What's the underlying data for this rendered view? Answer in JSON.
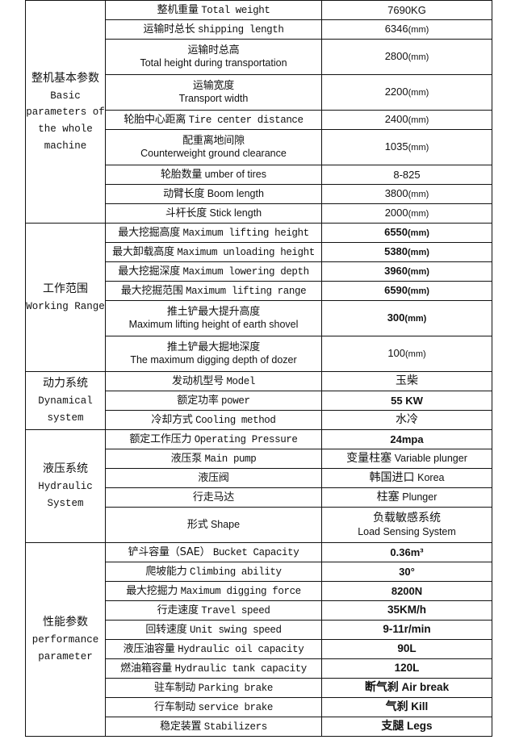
{
  "groups": [
    {
      "cn": "整机基本参数",
      "en": [
        "Basic",
        "parameters of",
        "the whole",
        "machine"
      ],
      "rows": [
        {
          "cn": "整机重量",
          "en": "Total weight",
          "value": "7690KG",
          "two": false,
          "bold": false
        },
        {
          "cn": "运输时总长",
          "en": "shipping length",
          "value": "6346",
          "unit": "(mm)",
          "two": false
        },
        {
          "cn": "运输时总高",
          "en": "Total height during transportation",
          "value": "2800",
          "unit": "(mm)",
          "two": true
        },
        {
          "cn": "运输宽度",
          "en": "Transport width",
          "value": "2200",
          "unit": "(mm)",
          "two": true
        },
        {
          "cn": "轮胎中心距离",
          "en": "Tire center distance",
          "value": "2400",
          "unit": "(mm)",
          "two": false
        },
        {
          "cn": "配重离地间隙",
          "en": "Counterweight ground clearance",
          "value": "1035",
          "unit": "(mm)",
          "two": true
        },
        {
          "cn": "轮胎数量",
          "en": "umber of tires",
          "value": "8-825",
          "two": false,
          "sans": true
        },
        {
          "cn": "动臂长度",
          "en": "Boom length",
          "value": "3800",
          "unit": "(mm)",
          "two": false,
          "sans": true
        },
        {
          "cn": "斗杆长度",
          "en": "Stick length",
          "value": "2000",
          "unit": "(mm)",
          "two": false,
          "sans": true
        }
      ]
    },
    {
      "cn": "工作范围",
      "en": [
        "Working Range"
      ],
      "rows": [
        {
          "cn": "最大挖掘高度",
          "en": "Maximum lifting height",
          "value": "6550",
          "unit": "(mm)",
          "bold": true
        },
        {
          "cn": "最大卸载高度",
          "en": "Maximum unloading height",
          "value": "5380",
          "unit": "(mm)",
          "bold": true
        },
        {
          "cn": "最大挖掘深度",
          "en": "Maximum lowering depth",
          "value": "3960",
          "unit": "(mm)",
          "bold": true
        },
        {
          "cn": "最大挖掘范围",
          "en": "Maximum lifting range",
          "value": "6590",
          "unit": "(mm)",
          "bold": true
        },
        {
          "cn": "推土铲最大提升高度",
          "en": "Maximum lifting height of earth shovel",
          "value": "300",
          "unit": "(mm)",
          "two": true,
          "bold": true
        },
        {
          "cn": "推土铲最大掘地深度",
          "en": "The maximum digging depth of dozer",
          "value": "100",
          "unit": "(mm)",
          "two": true
        }
      ]
    },
    {
      "cn": "动力系统",
      "en": [
        "Dynamical",
        "system"
      ],
      "rows": [
        {
          "cn": "发动机型号",
          "en": "Model",
          "value_cn": "玉柴"
        },
        {
          "cn": "额定功率",
          "en": "power",
          "value": "55 KW",
          "bold": true
        },
        {
          "cn": "冷却方式",
          "en": "Cooling method",
          "value_cn": "水冷"
        }
      ]
    },
    {
      "cn": "液压系统",
      "en": [
        "Hydraulic",
        "System"
      ],
      "rows": [
        {
          "cn": "额定工作压力",
          "en": "Operating Pressure",
          "value": "24mpa",
          "bold": true
        },
        {
          "cn": "液压泵",
          "en": "Main pump",
          "value_cn": "变量柱塞",
          "value": "Variable plunger"
        },
        {
          "cn": "液压阀",
          "en": "",
          "value_cn": "韩国进口",
          "value": "Korea"
        },
        {
          "cn": "行走马达",
          "en": "",
          "value_cn": "柱塞",
          "value": "Plunger"
        },
        {
          "cn": "形式",
          "en": "Shape",
          "value_cn": "负载敏感系统",
          "value": "Load Sensing System",
          "two_val": true,
          "sans": true
        }
      ]
    },
    {
      "cn": "性能参数",
      "en": [
        "performance",
        "parameter"
      ],
      "rows": [
        {
          "cn": "铲斗容量（SAE）",
          "en": "Bucket Capacity",
          "value": "0.36m³",
          "bold": true
        },
        {
          "cn": "爬坡能力",
          "en": "Climbing ability",
          "value": "30°",
          "bold": true
        },
        {
          "cn": "最大挖掘力",
          "en": "Maximum digging force",
          "value": "8200N",
          "bold": true
        },
        {
          "cn": "行走速度",
          "en": "Travel speed",
          "value": "35KM/h",
          "bold": true,
          "small": true
        },
        {
          "cn": "回转速度",
          "en": "Unit swing speed",
          "value": "9-11r/min",
          "bold": true,
          "small": true
        },
        {
          "cn": "液压油容量",
          "en": "Hydraulic oil capacity",
          "value": "90L",
          "bold": true,
          "small": true
        },
        {
          "cn": "燃油箱容量",
          "en": "Hydraulic tank capacity",
          "value": "120L",
          "bold": true,
          "small": true
        },
        {
          "cn": "驻车制动",
          "en": "Parking brake",
          "value_cn": "断气刹",
          "value": "Air break",
          "bold": true,
          "small": true
        },
        {
          "cn": "行车制动",
          "en": "service brake",
          "value_cn": "气刹",
          "value": "Kill",
          "bold": true,
          "small": true
        },
        {
          "cn": "稳定装置",
          "en": "Stabilizers",
          "value_cn": "支腿",
          "value": "Legs",
          "bold": true,
          "small": true
        }
      ]
    }
  ]
}
